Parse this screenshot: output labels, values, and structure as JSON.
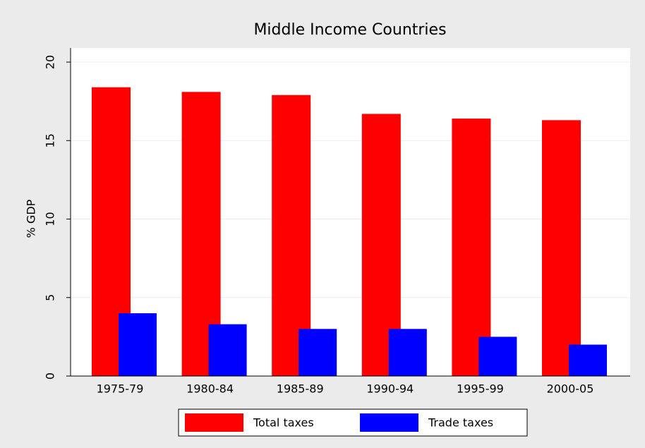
{
  "chart_data": {
    "type": "bar",
    "title": "Middle Income Countries",
    "y_label": "% GDP",
    "categories": [
      "1975-79",
      "1980-84",
      "1985-89",
      "1990-94",
      "1995-99",
      "2000-05"
    ],
    "series": [
      {
        "name": "Total taxes",
        "color": "#ff0000",
        "values": [
          18.4,
          18.1,
          17.9,
          16.7,
          16.4,
          16.3
        ]
      },
      {
        "name": "Trade taxes",
        "color": "#0000ff",
        "values": [
          4.0,
          3.3,
          3.0,
          3.0,
          2.5,
          2.0
        ]
      }
    ],
    "ylim": [
      0,
      20.9
    ],
    "yticks": [
      0,
      5,
      10,
      15,
      20
    ],
    "grid": true
  }
}
